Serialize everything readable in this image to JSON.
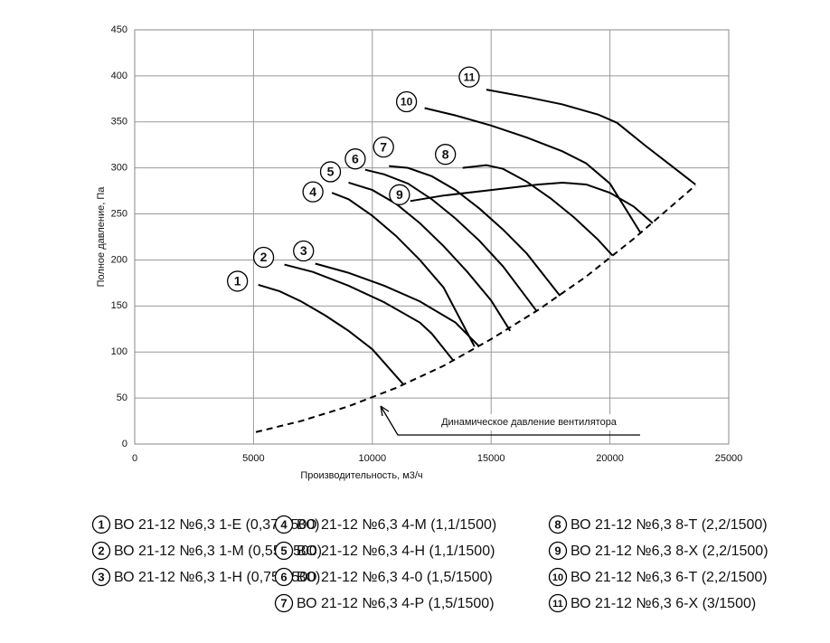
{
  "chart_data": {
    "type": "line",
    "xlabel": "Производительность, м3/ч",
    "ylabel": "Полное давление, Па",
    "xlim": [
      0,
      25000
    ],
    "ylim": [
      0,
      450
    ],
    "xticks": [
      0,
      5000,
      10000,
      15000,
      20000,
      25000
    ],
    "yticks": [
      0,
      50,
      100,
      150,
      200,
      250,
      300,
      350,
      400,
      450
    ],
    "grid": true,
    "series": [
      {
        "label": "1",
        "name": "ВО 21-12 №6,3 1-Е (0,37/1500)",
        "color": "#000",
        "x": [
          5200,
          6100,
          7000,
          8000,
          9000,
          10000,
          11300
        ],
        "values": [
          173,
          166,
          155,
          140,
          123,
          103,
          65
        ]
      },
      {
        "label": "2",
        "name": "ВО 21-12 №6,3 1-М (0,55/1500)",
        "color": "#000",
        "x": [
          6300,
          7500,
          9000,
          10500,
          12000,
          12500,
          13400
        ],
        "values": [
          195,
          187,
          172,
          154,
          132,
          120,
          91
        ]
      },
      {
        "label": "3",
        "name": "ВО 21-12 №6,3 1-Н (0,75/1500)",
        "color": "#000",
        "x": [
          7600,
          9000,
          10500,
          12000,
          13500,
          14500
        ],
        "values": [
          196,
          186,
          172,
          155,
          132,
          106
        ]
      },
      {
        "label": "4",
        "name": "ВО 21-12 №6,3 4-М (1,1/1500)",
        "color": "#000",
        "x": [
          8300,
          9000,
          10000,
          11000,
          12000,
          13000,
          14300
        ],
        "values": [
          273,
          266,
          248,
          226,
          200,
          170,
          106
        ]
      },
      {
        "label": "5",
        "name": "ВО 21-12 №6,3 4-Н (1,1/1500)",
        "color": "#000",
        "x": [
          9000,
          10000,
          11000,
          12000,
          13000,
          14000,
          15000,
          15800
        ],
        "values": [
          284,
          276,
          261,
          240,
          215,
          187,
          156,
          123
        ]
      },
      {
        "label": "6",
        "name": "ВО 21-12 №6,3 4-0 (1,5/1500)",
        "color": "#000",
        "x": [
          9700,
          10500,
          11500,
          12500,
          13500,
          14500,
          15500,
          16900
        ],
        "values": [
          298,
          293,
          283,
          266,
          245,
          221,
          193,
          145
        ]
      },
      {
        "label": "7",
        "name": "ВО 21-12 №6,3 4-Р (1,5/1500)",
        "color": "#000",
        "x": [
          10700,
          11500,
          12500,
          13500,
          14500,
          15500,
          16500,
          17900
        ],
        "values": [
          302,
          300,
          291,
          276,
          256,
          233,
          207,
          161
        ]
      },
      {
        "label": "8",
        "name": "ВО 21-12 №6,3 8-Т (2,2/1500)",
        "color": "#000",
        "x": [
          13800,
          14800,
          15500,
          16500,
          17500,
          18500,
          19500,
          20100
        ],
        "values": [
          300,
          303,
          299,
          285,
          267,
          246,
          222,
          205
        ]
      },
      {
        "label": "9",
        "name": "ВО 21-12 №6,3 8-Х (2,2/1500)",
        "color": "#000",
        "x": [
          11600,
          13000,
          15000,
          17000,
          18000,
          19000,
          20000,
          21000,
          21800
        ],
        "values": [
          264,
          270,
          276,
          282,
          284,
          282,
          273,
          258,
          240
        ]
      },
      {
        "label": "10",
        "name": "ВО 21-12 №6,3 6-Т (2,2/1500)",
        "color": "#000",
        "x": [
          12200,
          13500,
          15000,
          16500,
          18000,
          19000,
          20000,
          21300
        ],
        "values": [
          365,
          357,
          346,
          333,
          318,
          305,
          283,
          229
        ]
      },
      {
        "label": "11",
        "name": "ВО 21-12 №6,3 6-Х (3/1500)",
        "color": "#000",
        "x": [
          14800,
          16500,
          18000,
          19500,
          20300,
          21500,
          22500,
          23600
        ],
        "values": [
          385,
          377,
          369,
          358,
          349,
          324,
          304,
          282
        ]
      }
    ],
    "dynamic_pressure": {
      "label": "Динамическое давление вентилятора",
      "dashed": true,
      "color": "#000",
      "x": [
        5100,
        7000,
        9000,
        11000,
        13000,
        15000,
        17000,
        19000,
        21000,
        23600
      ],
      "values": [
        13,
        25,
        41,
        61,
        85,
        114,
        146,
        182,
        223,
        281
      ]
    }
  }
}
